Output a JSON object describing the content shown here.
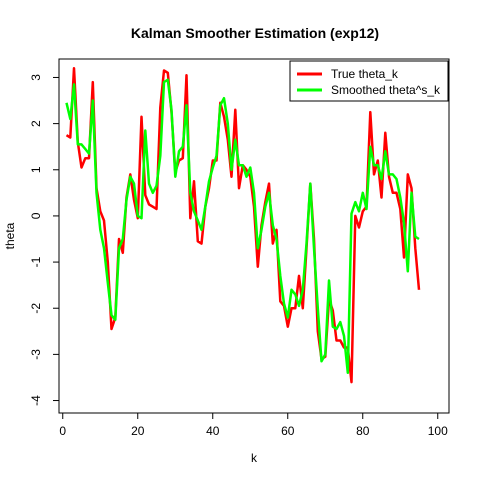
{
  "chart_data": {
    "type": "line",
    "title": "Kalman Smoother Estimation (exp12)",
    "xlabel": "k",
    "ylabel": "theta",
    "xlim": [
      -1.0,
      103.0
    ],
    "ylim": [
      -4.27,
      3.4
    ],
    "xticks": [
      0,
      20,
      40,
      60,
      80,
      100
    ],
    "yticks": [
      -4,
      -3,
      -2,
      -1,
      0,
      1,
      2,
      3
    ],
    "legend": {
      "position": "top-right"
    },
    "x": [
      1,
      2,
      3,
      4,
      5,
      6,
      7,
      8,
      9,
      10,
      11,
      12,
      13,
      14,
      15,
      16,
      17,
      18,
      19,
      20,
      21,
      22,
      23,
      24,
      25,
      26,
      27,
      28,
      29,
      30,
      31,
      32,
      33,
      34,
      35,
      36,
      37,
      38,
      39,
      40,
      41,
      42,
      43,
      44,
      45,
      46,
      47,
      48,
      49,
      50,
      51,
      52,
      53,
      54,
      55,
      56,
      57,
      58,
      59,
      60,
      61,
      62,
      63,
      64,
      65,
      66,
      67,
      68,
      69,
      70,
      71,
      72,
      73,
      74,
      75,
      76,
      77,
      78,
      79,
      80,
      81,
      82,
      83,
      84,
      85,
      86,
      87,
      88,
      89,
      90,
      91,
      92,
      93,
      94,
      95,
      96,
      97,
      98,
      99,
      100
    ],
    "series": [
      {
        "name": "True theta_k",
        "color": "#ff0000",
        "values": [
          1.75,
          1.7,
          3.2,
          1.6,
          1.05,
          1.25,
          1.25,
          2.9,
          0.6,
          0.1,
          -0.1,
          -1.0,
          -2.45,
          -2.2,
          -0.5,
          -0.8,
          0.4,
          0.9,
          0.35,
          -0.05,
          2.15,
          0.45,
          0.25,
          0.2,
          0.15,
          2.35,
          3.15,
          3.1,
          2.25,
          0.95,
          1.2,
          1.25,
          3.05,
          -0.05,
          0.75,
          -0.55,
          -0.6,
          0.2,
          0.6,
          1.2,
          1.2,
          2.45,
          2.15,
          1.65,
          0.85,
          2.3,
          0.6,
          1.1,
          1.0,
          0.85,
          0.2,
          -1.1,
          -0.2,
          0.3,
          0.7,
          -0.6,
          -0.3,
          -1.85,
          -1.95,
          -2.4,
          -2.0,
          -2.0,
          -1.3,
          -2.0,
          -0.7,
          0.7,
          -0.5,
          -2.5,
          -3.1,
          -3.05,
          -1.8,
          -2.05,
          -2.7,
          -2.7,
          -2.85,
          -2.85,
          -3.6,
          0.0,
          -0.25,
          0.1,
          0.2,
          2.25,
          0.9,
          1.2,
          0.4,
          1.8,
          0.85,
          0.5,
          0.5,
          0.15,
          -0.9,
          0.9,
          0.6,
          -0.7,
          -1.6,
          null,
          null,
          null,
          null,
          null
        ]
      },
      {
        "name": "Smoothed theta^s_k",
        "color": "#00ff00",
        "values": [
          2.45,
          2.1,
          2.85,
          1.55,
          1.55,
          1.45,
          1.35,
          2.5,
          0.5,
          -0.3,
          -0.7,
          -1.45,
          -2.15,
          -2.25,
          -0.7,
          -0.5,
          0.35,
          0.85,
          0.7,
          0.0,
          -0.05,
          1.85,
          0.7,
          0.5,
          0.65,
          1.3,
          2.9,
          2.95,
          2.3,
          0.85,
          1.4,
          1.5,
          2.4,
          0.5,
          0.1,
          -0.1,
          -0.3,
          0.2,
          0.75,
          1.05,
          1.3,
          2.4,
          2.55,
          2.0,
          1.0,
          1.65,
          1.1,
          1.1,
          0.85,
          1.05,
          0.5,
          -0.7,
          -0.3,
          0.2,
          0.5,
          -0.2,
          -0.5,
          -1.3,
          -1.9,
          -2.2,
          -1.6,
          -1.7,
          -1.95,
          -1.6,
          -0.6,
          0.7,
          -0.7,
          -2.0,
          -3.15,
          -3.0,
          -1.4,
          -2.4,
          -2.45,
          -2.3,
          -2.6,
          -3.4,
          0.05,
          0.3,
          0.1,
          0.5,
          0.15,
          1.5,
          1.1,
          1.1,
          0.8,
          1.4,
          0.9,
          0.9,
          0.8,
          0.4,
          -0.15,
          -1.2,
          0.5,
          -0.45,
          -0.5,
          null,
          null,
          null,
          null,
          null
        ]
      }
    ]
  }
}
